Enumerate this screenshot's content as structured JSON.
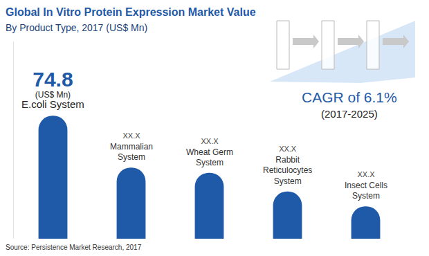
{
  "chart_data": {
    "type": "bar",
    "title": "Global In Vitro Protein Expression Market Value",
    "subtitle": "By Product Type, 2017 (US$ Mn)",
    "categories": [
      "E.coli System",
      "Mammalian System",
      "Wheat Germ System",
      "Rabbit Reticulocytes System",
      "Insect Cells System"
    ],
    "values": [
      74.8,
      43.3,
      40.1,
      28.7,
      19.7
    ],
    "value_labels": [
      "74.8",
      "XX.X",
      "XX.X",
      "XX.X",
      "XX.X"
    ],
    "label_units": [
      "(US$ Mn)",
      null,
      null,
      null,
      null
    ],
    "color": "#1f5aa8",
    "ylim": [
      0,
      120
    ],
    "grid": false,
    "data_labels": true,
    "tick_labels": false,
    "annotations": [
      "CAGR of 6.1%",
      "(2017-2025)"
    ],
    "source": "Source: Persistence Market Research, 2017"
  }
}
